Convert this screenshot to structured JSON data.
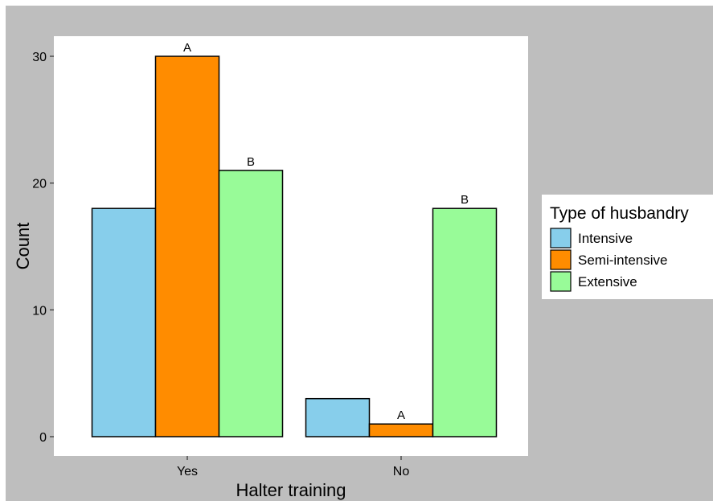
{
  "chart_data": {
    "type": "bar",
    "categories": [
      "Yes",
      "No"
    ],
    "series": [
      {
        "name": "Intensive",
        "values": [
          18,
          3
        ],
        "color": "#87ceeb",
        "labels": [
          "",
          ""
        ]
      },
      {
        "name": "Semi-intensive",
        "values": [
          30,
          1
        ],
        "color": "#ff8c00",
        "labels": [
          "A",
          "A"
        ]
      },
      {
        "name": "Extensive",
        "values": [
          21,
          18
        ],
        "color": "#98fb98",
        "labels": [
          "B",
          "B"
        ]
      }
    ],
    "title": "",
    "xlabel": "Halter training",
    "ylabel": "Count",
    "ylim": [
      0,
      31.5
    ],
    "yticks": [
      0,
      10,
      20,
      30
    ],
    "legend": {
      "title": "Type of husbandry",
      "position": "right"
    },
    "grid": false,
    "panel_background": "#ffffff",
    "outer_background": "#bebebe"
  }
}
